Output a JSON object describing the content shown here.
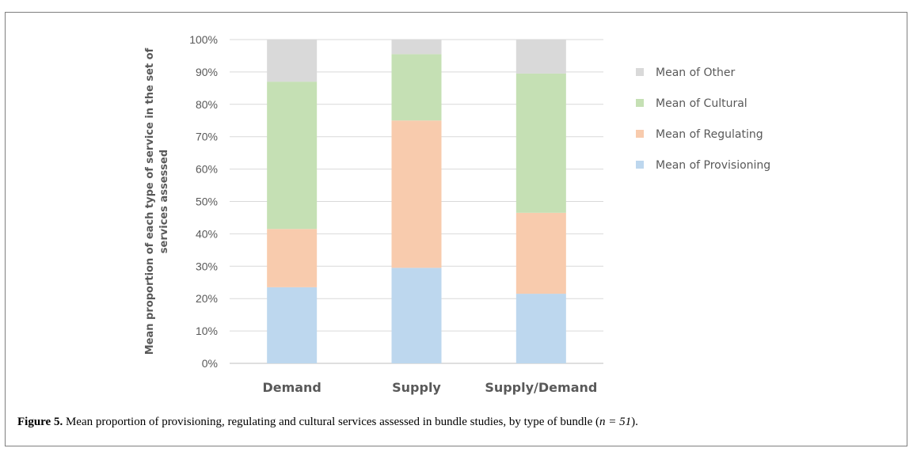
{
  "chart_data": {
    "type": "bar",
    "stacked": true,
    "categories": [
      "Demand",
      "Supply",
      "Supply/Demand"
    ],
    "series": [
      {
        "name": "Mean of Provisioning",
        "color": "#bdd7ee",
        "values": [
          23.5,
          29.5,
          21.5
        ]
      },
      {
        "name": "Mean of Regulating",
        "color": "#f8cbad",
        "values": [
          18,
          45.5,
          25
        ]
      },
      {
        "name": "Mean of Cultural",
        "color": "#c5e0b4",
        "values": [
          45.5,
          20.5,
          43
        ]
      },
      {
        "name": "Mean of Other",
        "color": "#d9d9d9",
        "values": [
          13,
          4.5,
          10.5
        ]
      }
    ],
    "ylabel_lines": [
      "Mean proportion of each type of service in the set of",
      "services  assessed"
    ],
    "ylim": [
      0,
      100
    ],
    "yticks": [
      "0%",
      "10%",
      "20%",
      "30%",
      "40%",
      "50%",
      "60%",
      "70%",
      "80%",
      "90%",
      "100%"
    ],
    "grid": true,
    "legend_placement": "right"
  },
  "caption": {
    "label": "Figure 5.",
    "text": " Mean proportion of provisioning, regulating and cultural services assessed in bundle studies, by type of bundle (",
    "math": "n = 51",
    "end": ")."
  }
}
